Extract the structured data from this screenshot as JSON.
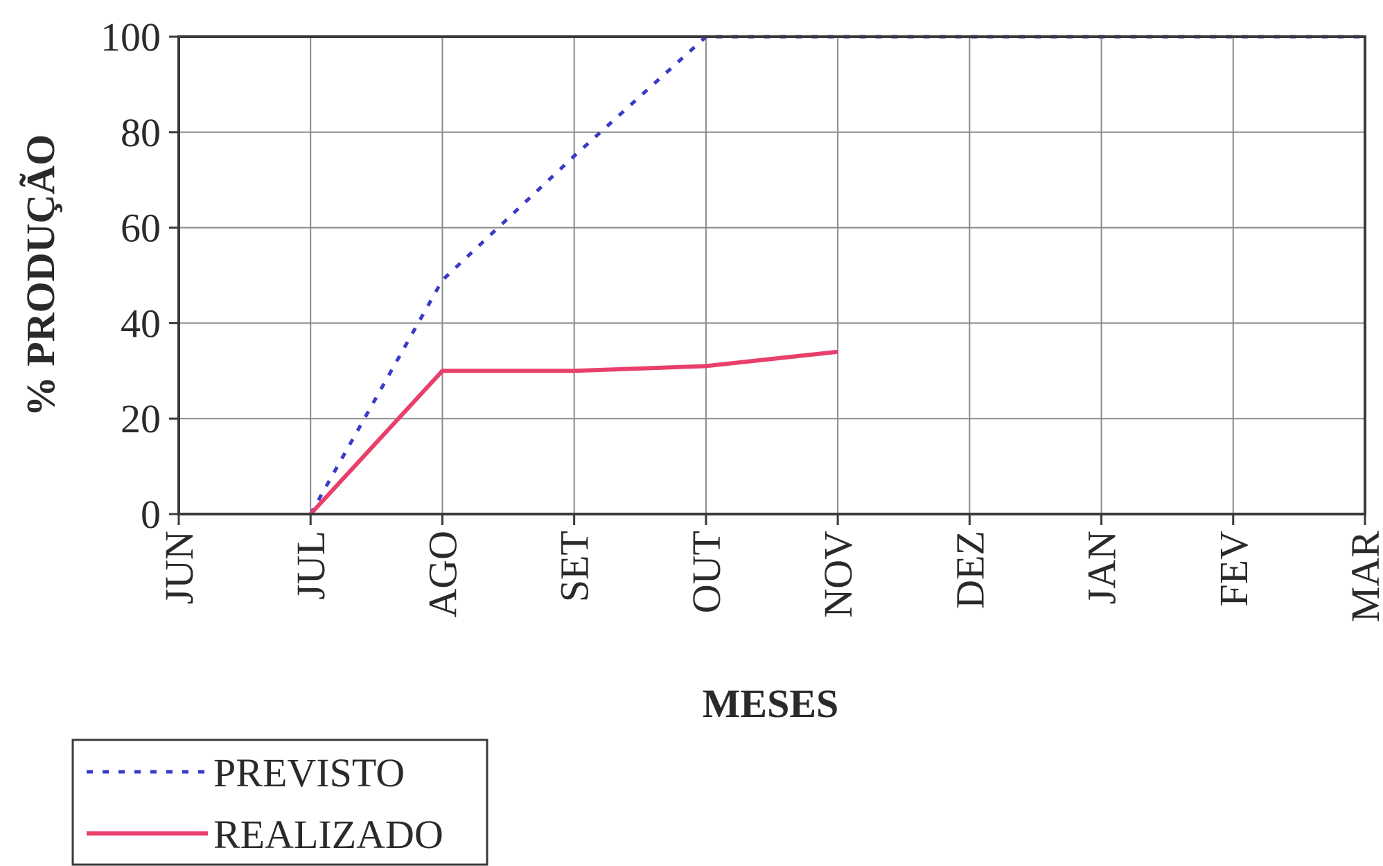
{
  "chart_data": {
    "type": "line",
    "title": "",
    "xlabel": "MESES",
    "ylabel": "% PRODUÇÃO",
    "categories": [
      "JUN",
      "JUL",
      "AGO",
      "SET",
      "OUT",
      "NOV",
      "DEZ",
      "JAN",
      "FEV",
      "MAR"
    ],
    "yticks": [
      "0",
      "20",
      "40",
      "60",
      "80",
      "100"
    ],
    "ylim": [
      0,
      100
    ],
    "grid": true,
    "legend_position": "bottom-left",
    "series": [
      {
        "name": "PREVISTO",
        "style": "dotted",
        "color": "#3a3ac8",
        "values": [
          null,
          0,
          49,
          75,
          100,
          100,
          100,
          100,
          100,
          100
        ]
      },
      {
        "name": "REALIZADO",
        "style": "solid",
        "color": "#e8406a",
        "values": [
          null,
          0,
          30,
          30,
          31,
          34,
          null,
          null,
          null,
          null
        ]
      }
    ]
  }
}
